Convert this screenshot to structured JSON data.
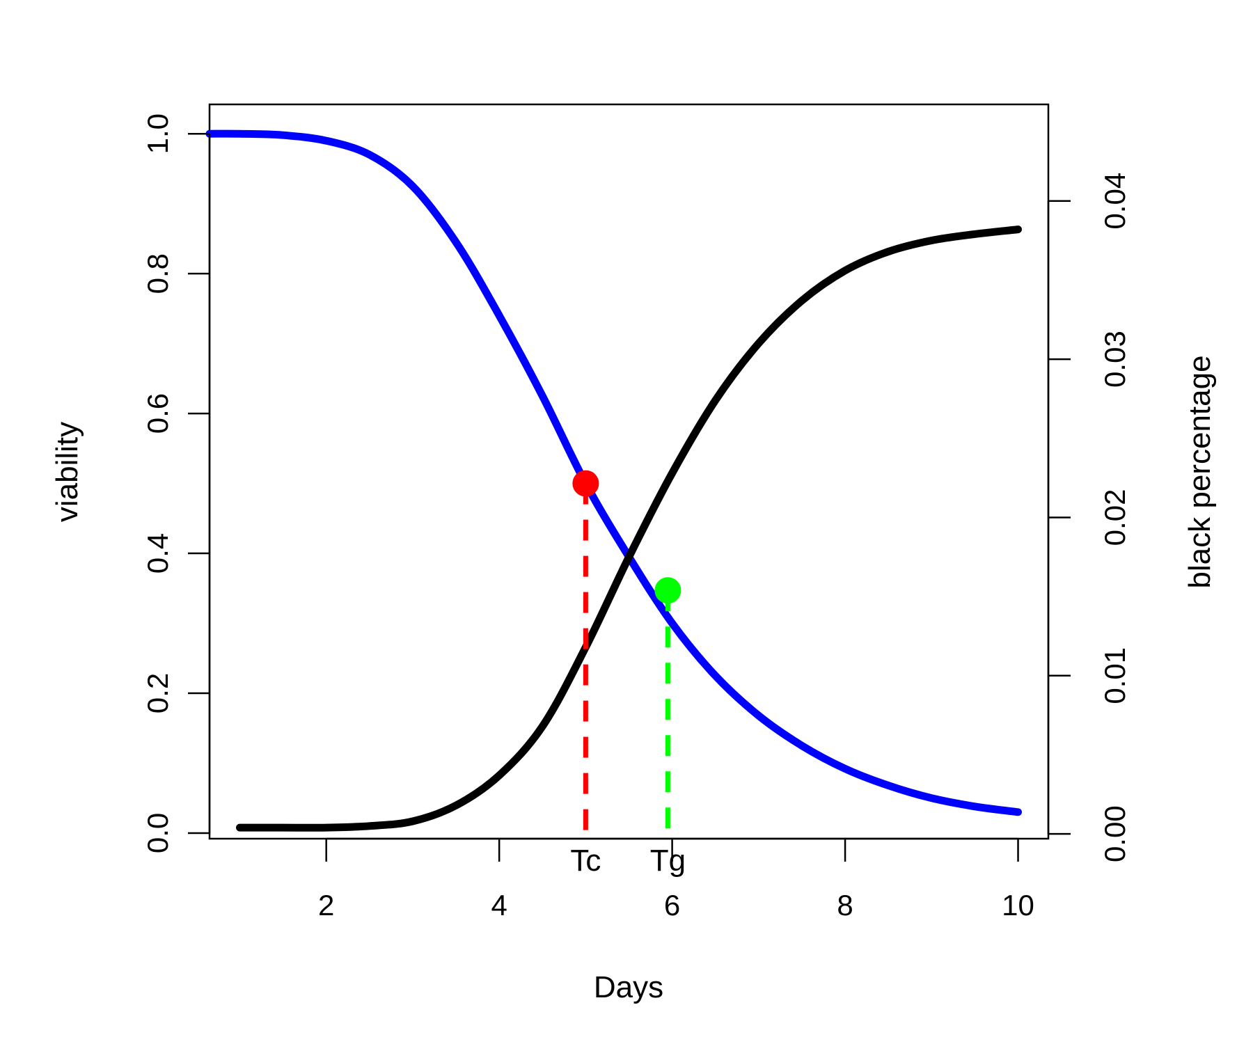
{
  "chart_data": {
    "type": "line",
    "title": "",
    "xlabel": "Days",
    "ylabel_left": "viability",
    "ylabel_right": "black percentage",
    "xlim": [
      0.65,
      10.35
    ],
    "ylim_left": [
      -0.008,
      1.042
    ],
    "ylim_right": [
      -0.0003,
      0.0461
    ],
    "x_ticks": [
      "2",
      "4",
      "6",
      "8",
      "10"
    ],
    "y_left_ticks": [
      "0.0",
      "0.2",
      "0.4",
      "0.6",
      "0.8",
      "1.0"
    ],
    "y_right_ticks": [
      "0.00",
      "0.01",
      "0.02",
      "0.03",
      "0.04"
    ],
    "grid": false,
    "legend": "none",
    "series": [
      {
        "axis": "left",
        "color": "#0000ff",
        "x": [
          0.65,
          1,
          1.5,
          2,
          2.5,
          3,
          3.5,
          4,
          4.5,
          5,
          5.5,
          6,
          6.5,
          7,
          7.5,
          8,
          8.5,
          9,
          9.5,
          10
        ],
        "y": [
          1.0,
          1.0,
          0.998,
          0.99,
          0.97,
          0.925,
          0.845,
          0.74,
          0.625,
          0.5,
          0.395,
          0.3,
          0.225,
          0.168,
          0.125,
          0.092,
          0.068,
          0.05,
          0.038,
          0.03
        ]
      },
      {
        "axis": "right",
        "color": "#000000",
        "x": [
          1,
          1.5,
          2,
          2.5,
          3,
          3.5,
          4,
          4.5,
          5,
          5.5,
          6,
          6.5,
          7,
          7.5,
          8,
          8.5,
          9,
          9.5,
          10
        ],
        "y": [
          0.0004,
          0.0004,
          0.0004,
          0.0005,
          0.0008,
          0.0018,
          0.0037,
          0.0068,
          0.0118,
          0.0175,
          0.0228,
          0.0274,
          0.031,
          0.0337,
          0.0356,
          0.0368,
          0.0375,
          0.0379,
          0.0382
        ]
      }
    ],
    "markers": [
      {
        "label": "Tc",
        "x": 5.0,
        "y": 0.5,
        "color": "#ff0000"
      },
      {
        "label": "Tg",
        "x": 5.95,
        "y": 0.347,
        "color": "#00ff00"
      }
    ]
  }
}
